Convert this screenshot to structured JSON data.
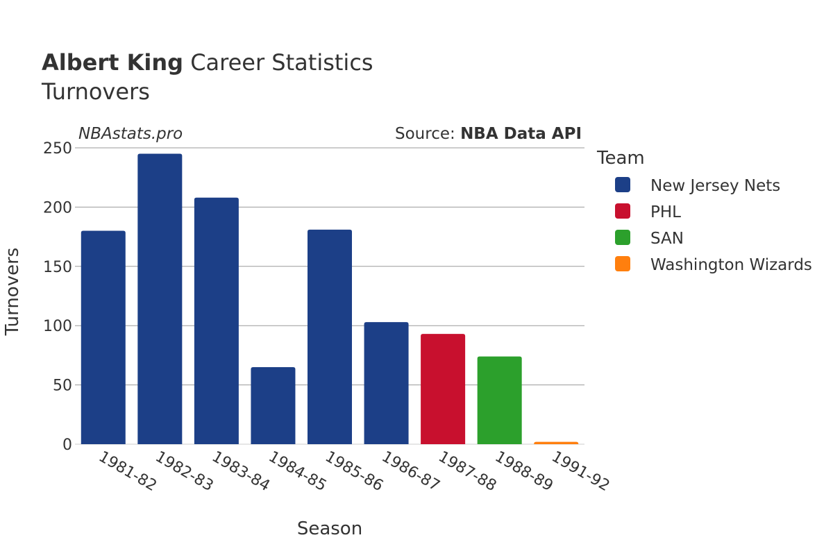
{
  "title_bold": "Albert King",
  "title_rest": " Career Statistics",
  "subtitle": "Turnovers",
  "watermark": "NBAstats.pro",
  "source_label": "Source: ",
  "source_name": "NBA Data API",
  "chart_data": {
    "type": "bar",
    "title": "Albert King Career Statistics - Turnovers",
    "xlabel": "Season",
    "ylabel": "Turnovers",
    "ylim": [
      0,
      250
    ],
    "yticks": [
      0,
      50,
      100,
      150,
      200,
      250
    ],
    "grid": true,
    "categories": [
      "1981-82",
      "1982-83",
      "1983-84",
      "1984-85",
      "1985-86",
      "1986-87",
      "1987-88",
      "1988-89",
      "1991-92"
    ],
    "values": [
      180,
      245,
      208,
      65,
      181,
      103,
      93,
      74,
      2
    ],
    "teams": [
      "New Jersey Nets",
      "New Jersey Nets",
      "New Jersey Nets",
      "New Jersey Nets",
      "New Jersey Nets",
      "New Jersey Nets",
      "PHL",
      "SAN",
      "Washington Wizards"
    ],
    "legend_title": "Team",
    "legend_placement": "right",
    "legend": [
      {
        "name": "New Jersey Nets",
        "color": "#1c3f87"
      },
      {
        "name": "PHL",
        "color": "#c8102e"
      },
      {
        "name": "SAN",
        "color": "#2ca02c"
      },
      {
        "name": "Washington Wizards",
        "color": "#ff7f0e"
      }
    ]
  }
}
